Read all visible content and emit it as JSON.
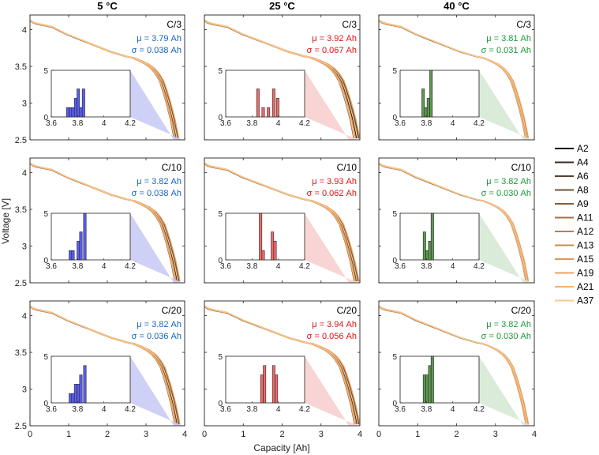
{
  "chart_data": {
    "type": "line",
    "figure": {
      "xlabel": "Capacity [Ah]",
      "ylabel": "Voltage [V]",
      "xlim": [
        0,
        4
      ],
      "ylim": [
        2.5,
        4.2
      ],
      "xticks": [
        "0",
        "1",
        "2",
        "3",
        "4"
      ],
      "yticks": [
        "2.5",
        "3",
        "3.5",
        "4"
      ],
      "inset_xticks": [
        "3.6",
        "3.8",
        "4",
        "4.2"
      ],
      "inset_yticks": [
        "0",
        "5"
      ],
      "inset_xlim": [
        3.6,
        4.2
      ],
      "inset_ylim": [
        0,
        5
      ]
    },
    "columns": [
      {
        "title": "5 °C",
        "color": "#1565C0",
        "fill": "#c6c8f4",
        "bar": "#5b5ef0"
      },
      {
        "title": "25 °C",
        "color": "#e01010",
        "fill": "#f8cdcd",
        "bar": "#ef6a6a"
      },
      {
        "title": "40 °C",
        "color": "#1a9a3a",
        "fill": "#d3e8d3",
        "bar": "#5e9a50"
      }
    ],
    "panels": [
      {
        "rate": "C/3",
        "mu": "μ = 3.79 Ah",
        "sigma": "σ = 0.038 Ah",
        "cap_min": 3.72,
        "cap_max": 3.85,
        "hist": [
          {
            "x": 3.725,
            "c": 1
          },
          {
            "x": 3.745,
            "c": 1
          },
          {
            "x": 3.765,
            "c": 1
          },
          {
            "x": 3.785,
            "c": 2
          },
          {
            "x": 3.805,
            "c": 3
          },
          {
            "x": 3.825,
            "c": 1
          },
          {
            "x": 3.845,
            "c": 3
          }
        ]
      },
      {
        "rate": "C/3",
        "mu": "μ = 3.92 Ah",
        "sigma": "σ = 0.067 Ah",
        "cap_min": 3.84,
        "cap_max": 4.0,
        "hist": [
          {
            "x": 3.845,
            "c": 3
          },
          {
            "x": 3.885,
            "c": 1
          },
          {
            "x": 3.925,
            "c": 1
          },
          {
            "x": 3.965,
            "c": 3
          },
          {
            "x": 3.995,
            "c": 2
          }
        ]
      },
      {
        "rate": "C/3",
        "mu": "μ = 3.81 Ah",
        "sigma": "σ = 0.031 Ah",
        "cap_min": 3.77,
        "cap_max": 3.85,
        "hist": [
          {
            "x": 3.775,
            "c": 3
          },
          {
            "x": 3.795,
            "c": 1
          },
          {
            "x": 3.815,
            "c": 2
          },
          {
            "x": 3.835,
            "c": 5
          }
        ]
      },
      {
        "rate": "C/10",
        "mu": "μ = 3.82 Ah",
        "sigma": "σ = 0.038 Ah",
        "cap_min": 3.74,
        "cap_max": 3.88,
        "hist": [
          {
            "x": 3.745,
            "c": 1
          },
          {
            "x": 3.765,
            "c": 1
          },
          {
            "x": 3.805,
            "c": 2
          },
          {
            "x": 3.825,
            "c": 3
          },
          {
            "x": 3.855,
            "c": 5
          }
        ]
      },
      {
        "rate": "C/10",
        "mu": "μ = 3.93 Ah",
        "sigma": "σ = 0.062 Ah",
        "cap_min": 3.85,
        "cap_max": 3.98,
        "hist": [
          {
            "x": 3.865,
            "c": 5
          },
          {
            "x": 3.885,
            "c": 1
          },
          {
            "x": 3.955,
            "c": 3
          },
          {
            "x": 3.975,
            "c": 2
          }
        ]
      },
      {
        "rate": "C/10",
        "mu": "μ = 3.82 Ah",
        "sigma": "σ = 0.030 Ah",
        "cap_min": 3.78,
        "cap_max": 3.85,
        "hist": [
          {
            "x": 3.785,
            "c": 3
          },
          {
            "x": 3.805,
            "c": 1
          },
          {
            "x": 3.825,
            "c": 2
          },
          {
            "x": 3.845,
            "c": 5
          }
        ]
      },
      {
        "rate": "C/20",
        "mu": "μ = 3.82 Ah",
        "sigma": "σ = 0.036 Ah",
        "cap_min": 3.74,
        "cap_max": 3.88,
        "hist": [
          {
            "x": 3.745,
            "c": 1
          },
          {
            "x": 3.765,
            "c": 1
          },
          {
            "x": 3.785,
            "c": 2
          },
          {
            "x": 3.805,
            "c": 2
          },
          {
            "x": 3.825,
            "c": 3
          },
          {
            "x": 3.855,
            "c": 4
          }
        ]
      },
      {
        "rate": "C/20",
        "mu": "μ = 3.94 Ah",
        "sigma": "σ = 0.056 Ah",
        "cap_min": 3.86,
        "cap_max": 4.0,
        "hist": [
          {
            "x": 3.875,
            "c": 3
          },
          {
            "x": 3.895,
            "c": 4
          },
          {
            "x": 3.965,
            "c": 4
          },
          {
            "x": 3.985,
            "c": 3
          }
        ]
      },
      {
        "rate": "C/20",
        "mu": "μ = 3.82 Ah",
        "sigma": "σ = 0.030 Ah",
        "cap_min": 3.78,
        "cap_max": 3.85,
        "hist": [
          {
            "x": 3.785,
            "c": 3
          },
          {
            "x": 3.805,
            "c": 3
          },
          {
            "x": 3.825,
            "c": 4
          },
          {
            "x": 3.845,
            "c": 5
          }
        ]
      }
    ],
    "legend": {
      "placement": "right",
      "entries": [
        {
          "name": "A2",
          "color": "#000000"
        },
        {
          "name": "A4",
          "color": "#3a2a1f"
        },
        {
          "name": "A6",
          "color": "#5a4030"
        },
        {
          "name": "A8",
          "color": "#6e5038"
        },
        {
          "name": "A9",
          "color": "#80603f"
        },
        {
          "name": "A11",
          "color": "#a07048"
        },
        {
          "name": "A12",
          "color": "#bb7c4c"
        },
        {
          "name": "A13",
          "color": "#d08850"
        },
        {
          "name": "A15",
          "color": "#e09558"
        },
        {
          "name": "A19",
          "color": "#eca262"
        },
        {
          "name": "A21",
          "color": "#f3b270"
        },
        {
          "name": "A37",
          "color": "#f8c890"
        }
      ]
    }
  }
}
